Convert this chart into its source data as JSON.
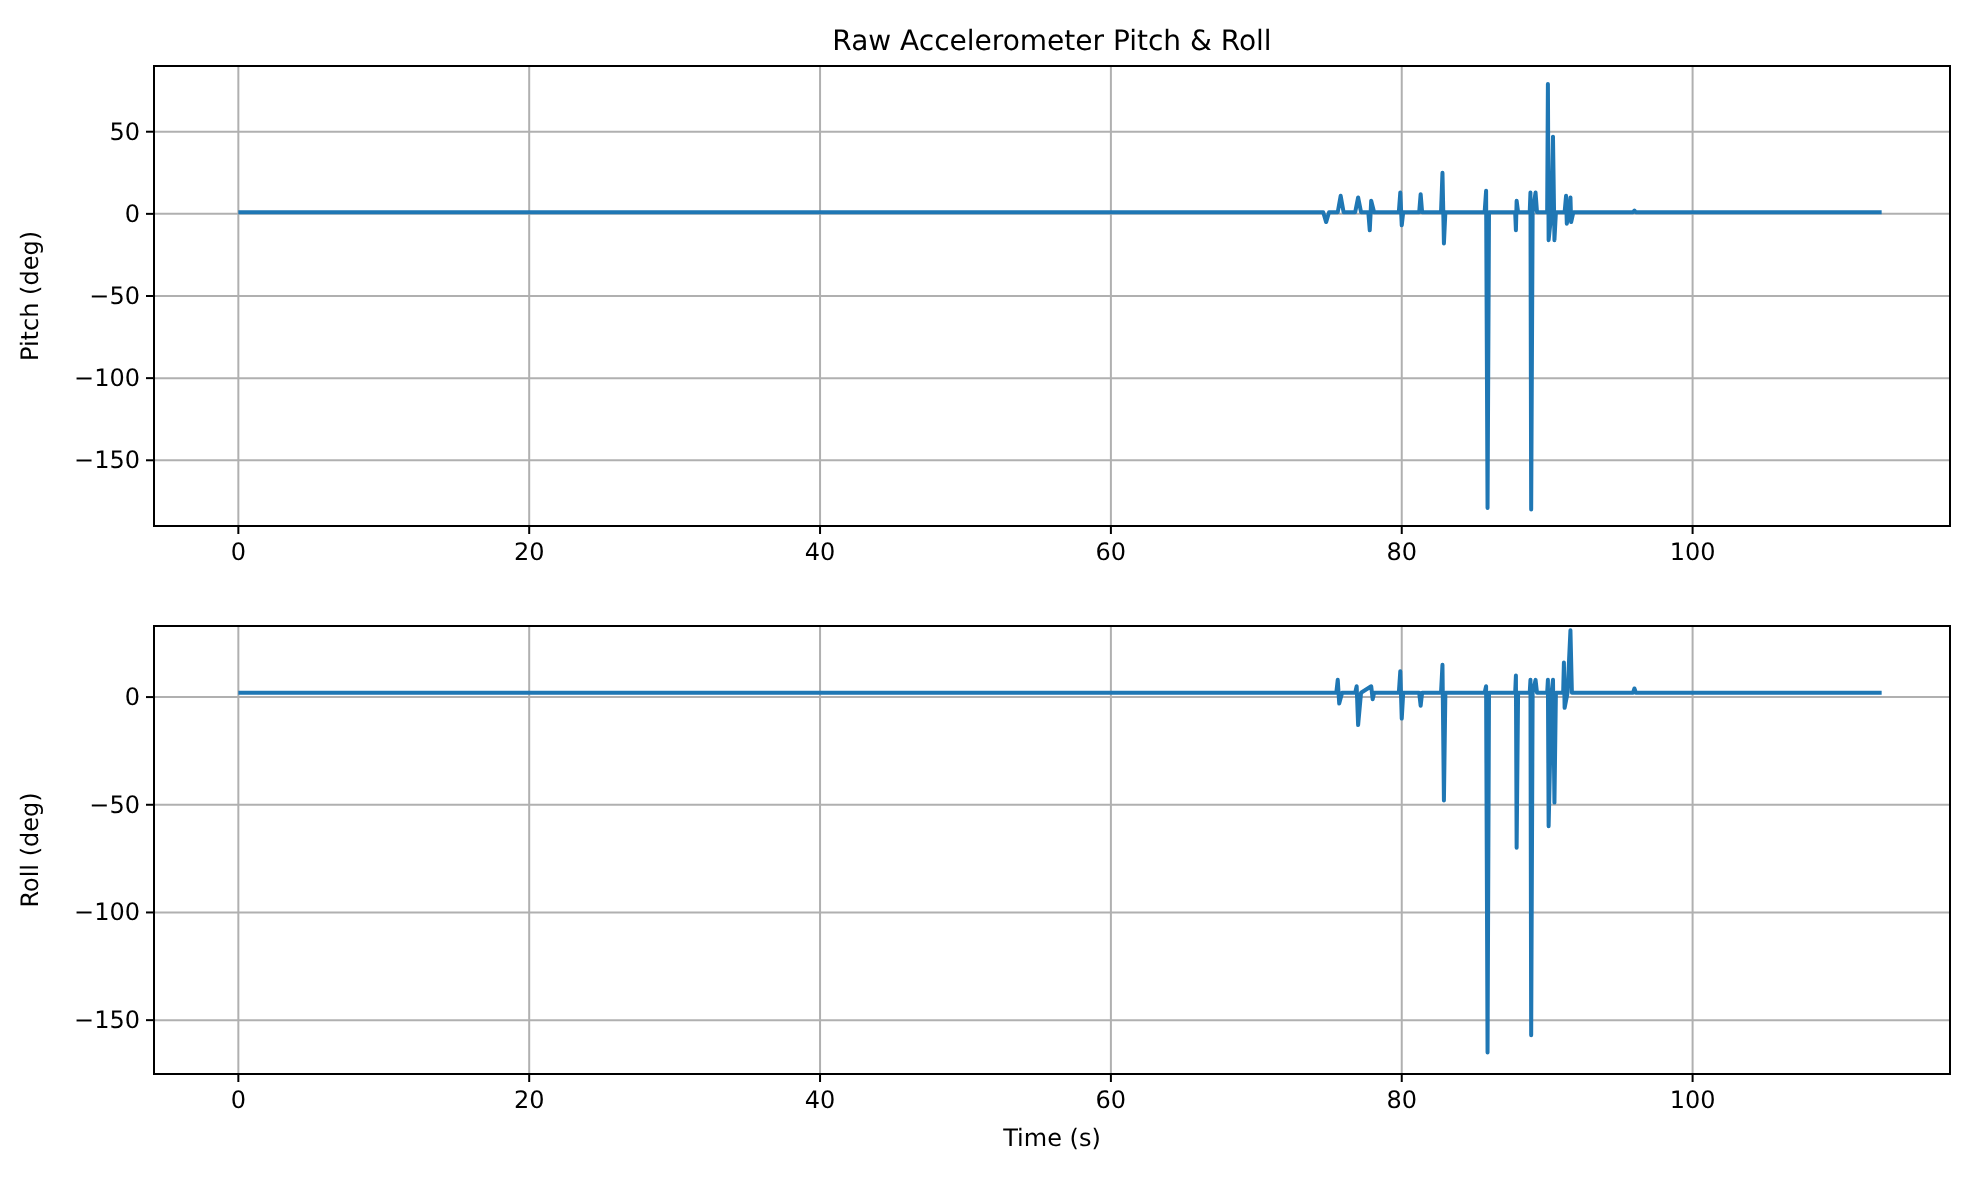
{
  "chart_data": [
    {
      "type": "line",
      "title": "Raw Accelerometer Pitch & Roll",
      "ylabel": "Pitch (deg)",
      "grid": true,
      "xlim": [
        -5.8,
        117.7
      ],
      "ylim": [
        -190,
        90
      ],
      "xticks": [
        0,
        20,
        40,
        60,
        80,
        100
      ],
      "yticks": [
        -150,
        -100,
        -50,
        0,
        50
      ],
      "series": [
        {
          "color": "#1f77b4",
          "x": [
            0,
            10,
            20,
            30,
            40,
            50,
            60,
            70,
            74.6,
            74.8,
            75.0,
            75.6,
            75.8,
            76.0,
            76.8,
            77.0,
            77.2,
            77.7,
            77.8,
            77.9,
            78.1,
            79.8,
            79.9,
            80.0,
            80.1,
            81.2,
            81.3,
            81.4,
            82.7,
            82.8,
            82.9,
            83.0,
            85.7,
            85.8,
            85.9,
            86.0,
            87.8,
            87.85,
            87.9,
            88.0,
            88.8,
            88.85,
            88.9,
            89.0,
            89.2,
            89.3,
            89.4,
            90.0,
            90.05,
            90.1,
            90.3,
            90.4,
            90.5,
            90.6,
            91.2,
            91.3,
            91.35,
            91.5,
            91.6,
            91.65,
            91.8,
            95.9,
            96.0,
            96.1,
            100,
            110,
            113
          ],
          "values": [
            1,
            1,
            1,
            1,
            1,
            1,
            1,
            1,
            1,
            -5,
            1,
            1,
            11,
            1,
            1,
            10,
            1,
            1,
            -10,
            8,
            1,
            1,
            13,
            -7,
            1,
            1,
            12,
            1,
            1,
            25,
            -18,
            1,
            1,
            14,
            -179,
            1,
            1,
            -10,
            8,
            1,
            1,
            13,
            -180,
            1,
            13,
            1,
            1,
            1,
            79,
            -16,
            1,
            47,
            -16,
            1,
            1,
            11,
            -6,
            1,
            10,
            -5,
            1,
            1,
            2,
            1,
            1,
            1,
            1
          ]
        }
      ]
    },
    {
      "type": "line",
      "xlabel": "Time (s)",
      "ylabel": "Roll (deg)",
      "grid": true,
      "xlim": [
        -5.8,
        117.7
      ],
      "ylim": [
        -175,
        33
      ],
      "xticks": [
        0,
        20,
        40,
        60,
        80,
        100
      ],
      "yticks": [
        -150,
        -100,
        -50,
        0
      ],
      "series": [
        {
          "color": "#1f77b4",
          "x": [
            0,
            10,
            20,
            30,
            40,
            50,
            60,
            70,
            75.5,
            75.6,
            75.7,
            75.9,
            76.8,
            76.9,
            77.0,
            77.2,
            77.9,
            78.0,
            78.1,
            79.8,
            79.9,
            80.0,
            80.1,
            81.2,
            81.3,
            81.4,
            82.7,
            82.8,
            82.9,
            83.0,
            85.7,
            85.8,
            85.9,
            86.0,
            87.8,
            87.85,
            87.9,
            88.0,
            88.8,
            88.85,
            88.9,
            89.0,
            89.2,
            89.3,
            90.0,
            90.05,
            90.1,
            90.3,
            90.4,
            90.5,
            90.6,
            91.1,
            91.15,
            91.2,
            91.4,
            91.6,
            91.7,
            95.9,
            96.0,
            96.1,
            100,
            110,
            113
          ],
          "values": [
            2,
            2,
            2,
            2,
            2,
            2,
            2,
            2,
            2,
            8,
            -3,
            2,
            2,
            5,
            -13,
            2,
            5,
            -1,
            2,
            2,
            12,
            -10,
            2,
            2,
            -4,
            2,
            2,
            15,
            -48,
            2,
            2,
            5,
            -165,
            2,
            2,
            10,
            -70,
            2,
            2,
            8,
            -157,
            2,
            8,
            2,
            2,
            8,
            -60,
            2,
            8,
            -49,
            2,
            2,
            16,
            -5,
            2,
            31,
            2,
            2,
            4,
            2,
            2,
            2,
            2
          ]
        }
      ]
    }
  ]
}
